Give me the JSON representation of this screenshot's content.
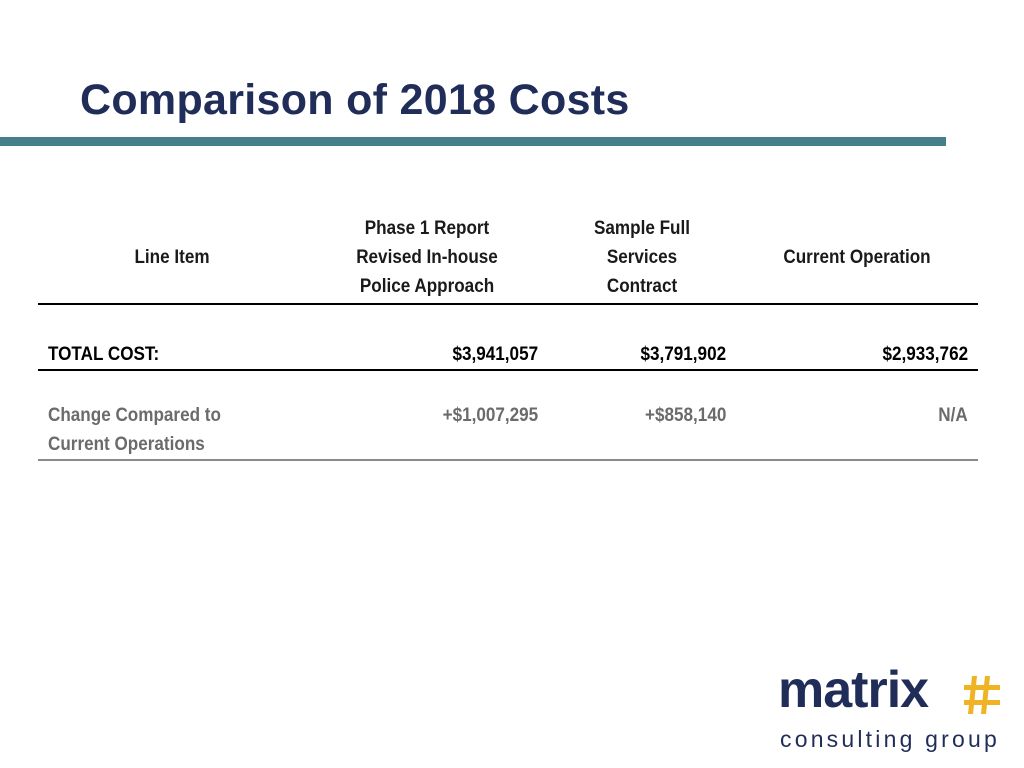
{
  "slide": {
    "title": "Comparison of 2018 Costs"
  },
  "table": {
    "headers": [
      "Line Item",
      "Phase 1 Report\nRevised In-house\nPolice Approach",
      "Sample Full\nServices\nContract",
      "Current Operation"
    ],
    "total_row": {
      "label": "TOTAL COST:",
      "values": [
        "$3,941,057",
        "$3,791,902",
        "$2,933,762"
      ]
    },
    "change_row": {
      "label": "Change Compared to\nCurrent Operations",
      "values": [
        "+$1,007,295",
        "+$858,140",
        "N/A"
      ]
    }
  },
  "logo": {
    "word": "matrix",
    "sub": "consulting group",
    "mark": "hash-grid-icon",
    "colors": {
      "word": "#1f2d58",
      "mark": "#f0b323"
    }
  },
  "colors": {
    "title": "#1f2d58",
    "rule": "#467f8a"
  }
}
